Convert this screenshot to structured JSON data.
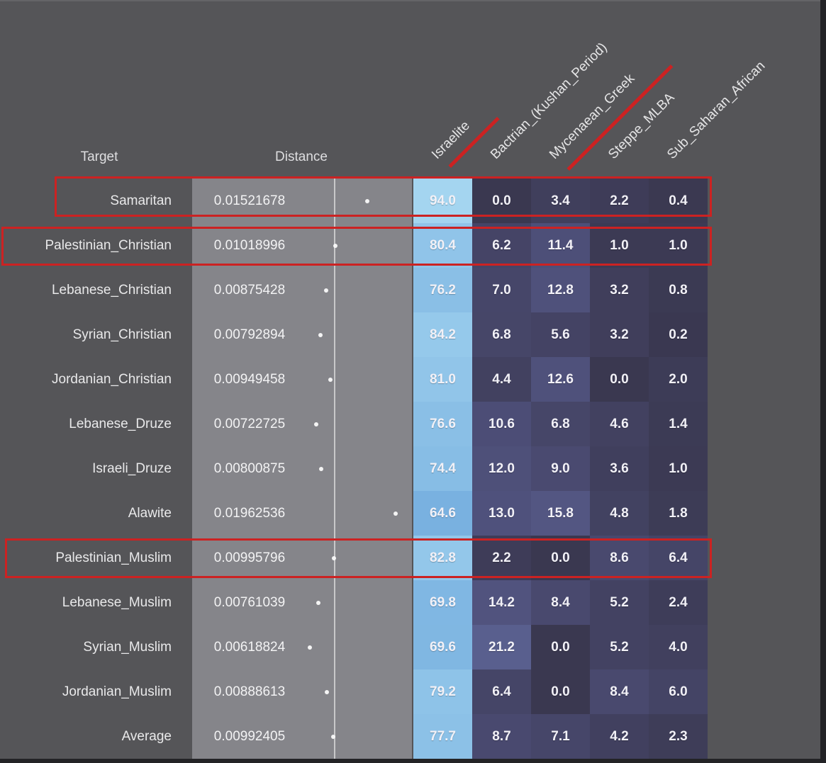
{
  "table": {
    "headers": {
      "target": "Target",
      "distance": "Distance"
    }
  },
  "chart_data": {
    "type": "heatmap",
    "title": "",
    "columns": [
      {
        "label": "Israelite",
        "underlined": true
      },
      {
        "label": "Bactrian_(Kushan_Period)",
        "underlined": false
      },
      {
        "label": "Mycenaean_Greek",
        "underlined": true
      },
      {
        "label": "Steppe_MLBA",
        "underlined": false
      },
      {
        "label": "Sub_Saharan_African",
        "underlined": false
      }
    ],
    "value_range": [
      0,
      100
    ],
    "distance_gridline_at": 0.01,
    "rows": [
      {
        "target": "Samaritan",
        "distance": "0.01521678",
        "values": [
          "94.0",
          "0.0",
          "3.4",
          "2.2",
          "0.4"
        ],
        "highlighted": true
      },
      {
        "target": "Palestinian_Christian",
        "distance": "0.01018996",
        "values": [
          "80.4",
          "6.2",
          "11.4",
          "1.0",
          "1.0"
        ],
        "highlighted": true
      },
      {
        "target": "Lebanese_Christian",
        "distance": "0.00875428",
        "values": [
          "76.2",
          "7.0",
          "12.8",
          "3.2",
          "0.8"
        ],
        "highlighted": false
      },
      {
        "target": "Syrian_Christian",
        "distance": "0.00792894",
        "values": [
          "84.2",
          "6.8",
          "5.6",
          "3.2",
          "0.2"
        ],
        "highlighted": false
      },
      {
        "target": "Jordanian_Christian",
        "distance": "0.00949458",
        "values": [
          "81.0",
          "4.4",
          "12.6",
          "0.0",
          "2.0"
        ],
        "highlighted": false
      },
      {
        "target": "Lebanese_Druze",
        "distance": "0.00722725",
        "values": [
          "76.6",
          "10.6",
          "6.8",
          "4.6",
          "1.4"
        ],
        "highlighted": false
      },
      {
        "target": "Israeli_Druze",
        "distance": "0.00800875",
        "values": [
          "74.4",
          "12.0",
          "9.0",
          "3.6",
          "1.0"
        ],
        "highlighted": false
      },
      {
        "target": "Alawite",
        "distance": "0.01962536",
        "values": [
          "64.6",
          "13.0",
          "15.8",
          "4.8",
          "1.8"
        ],
        "highlighted": false
      },
      {
        "target": "Palestinian_Muslim",
        "distance": "0.00995796",
        "values": [
          "82.8",
          "2.2",
          "0.0",
          "8.6",
          "6.4"
        ],
        "highlighted": true
      },
      {
        "target": "Lebanese_Muslim",
        "distance": "0.00761039",
        "values": [
          "69.8",
          "14.2",
          "8.4",
          "5.2",
          "2.4"
        ],
        "highlighted": false
      },
      {
        "target": "Syrian_Muslim",
        "distance": "0.00618824",
        "values": [
          "69.6",
          "21.2",
          "0.0",
          "5.2",
          "4.0"
        ],
        "highlighted": false
      },
      {
        "target": "Jordanian_Muslim",
        "distance": "0.00888613",
        "values": [
          "79.2",
          "6.4",
          "0.0",
          "8.4",
          "6.0"
        ],
        "highlighted": false
      },
      {
        "target": "Average",
        "distance": "0.00992405",
        "values": [
          "77.7",
          "8.7",
          "7.1",
          "4.2",
          "2.3"
        ],
        "highlighted": false
      }
    ]
  },
  "annotations": {
    "highlighted_rows": [
      "Samaritan",
      "Palestinian_Christian",
      "Palestinian_Muslim"
    ],
    "underlined_columns": [
      "Israelite",
      "Mycenaean_Greek"
    ],
    "color": "#cc2222"
  },
  "colors": {
    "background": "#555558",
    "distance_strip": "#85858a",
    "annotation_red": "#cc2222",
    "heatmap_stops": [
      [
        0,
        "#3a3850"
      ],
      [
        11,
        "#4d4e77"
      ],
      [
        22,
        "#5a6090"
      ],
      [
        60,
        "#72abdd"
      ],
      [
        95,
        "#a5d6f1"
      ]
    ]
  }
}
